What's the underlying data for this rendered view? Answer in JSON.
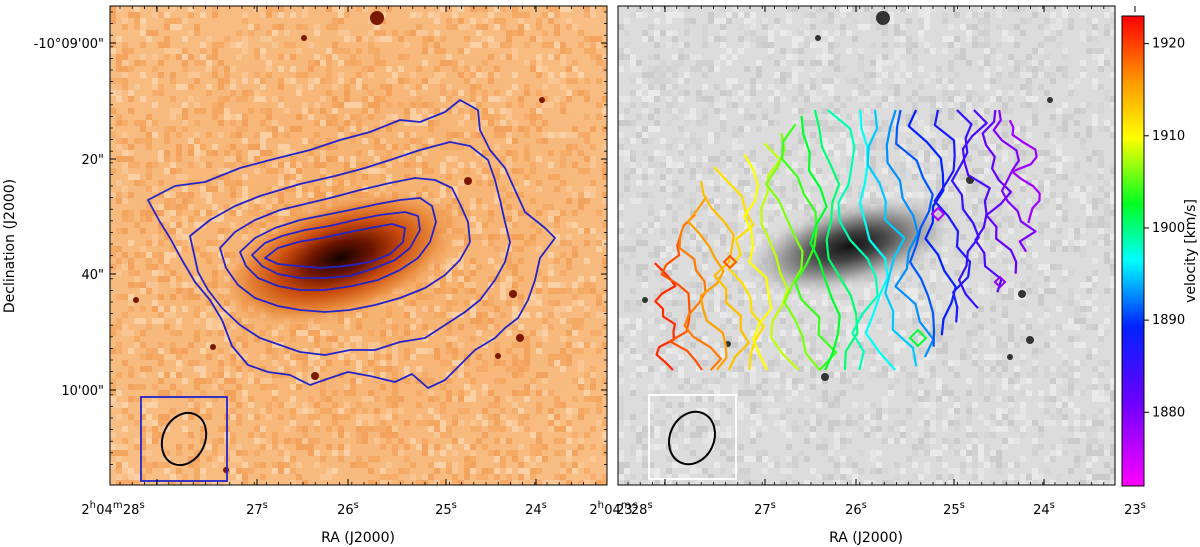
{
  "chart_data": [
    {
      "type": "image-contour",
      "panel": "left",
      "image": "optical image (orange colormap)",
      "contour_color": "#2424c8",
      "xlabel": "RA (J2000)",
      "ylabel": "Declination (J2000)",
      "x_ticks": [
        {
          "main": "2",
          "sup1": "h",
          "mid": "04",
          "sup2": "m",
          "rest": "28",
          "sup3": "s"
        },
        {
          "main": "27",
          "sup1": "s"
        },
        {
          "main": "26",
          "sup1": "s"
        },
        {
          "main": "25",
          "sup1": "s"
        },
        {
          "main": "24",
          "sup1": "s"
        },
        {
          "main": "23",
          "sup1": "s"
        }
      ],
      "y_ticks": [
        "-10°09'00\"",
        "20\"",
        "40\"",
        "10'00\""
      ],
      "beam_box_color": "#2424c8",
      "beam_ellipse_color": "#000000"
    },
    {
      "type": "image-contour",
      "panel": "right",
      "image": "optical image (grayscale)",
      "contour_coloring": "velocity",
      "xlabel": "RA (J2000)",
      "x_ticks": [
        {
          "main": "2",
          "sup1": "h",
          "mid": "04",
          "sup2": "m",
          "rest": "28",
          "sup3": "s"
        },
        {
          "main": "27",
          "sup1": "s"
        },
        {
          "main": "26",
          "sup1": "s"
        },
        {
          "main": "25",
          "sup1": "s"
        },
        {
          "main": "24",
          "sup1": "s"
        },
        {
          "main": "23",
          "sup1": "s"
        }
      ],
      "beam_box_color": "#ffffff",
      "beam_ellipse_color": "#000000",
      "colorbar": {
        "label": "velocity [km/s]",
        "colormap": "gist_rainbow (magenta-blue-cyan-green-yellow-orange-red)",
        "range": [
          1872,
          1923
        ],
        "ticks": [
          "1880",
          "1890",
          "1900",
          "1910",
          "1920"
        ],
        "tick_values": [
          1880,
          1890,
          1900,
          1910,
          1920
        ]
      }
    }
  ]
}
